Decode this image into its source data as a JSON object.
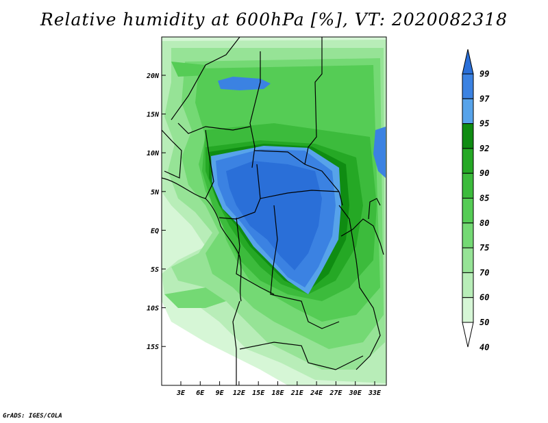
{
  "title": "Relative humidity at 600hPa [%], VT: 2020082318",
  "credit": "GrADS: IGES/COLA",
  "lon_ticks": [
    "3E",
    "6E",
    "9E",
    "12E",
    "15E",
    "18E",
    "21E",
    "24E",
    "27E",
    "30E",
    "33E"
  ],
  "lat_ticks": [
    "20N",
    "15N",
    "10N",
    "5N",
    "EQ",
    "5S",
    "10S",
    "15S"
  ],
  "colorbar": {
    "labels": [
      "99",
      "97",
      "95",
      "92",
      "90",
      "85",
      "80",
      "75",
      "70",
      "60",
      "50",
      "40"
    ],
    "colors": [
      "#2a6fd8",
      "#3b82e2",
      "#57a3ea",
      "#0f8c12",
      "#25a825",
      "#3cbb3c",
      "#55cc55",
      "#74d974",
      "#96e396",
      "#b8edb8",
      "#d6f6d6",
      "#ffffff"
    ]
  }
}
